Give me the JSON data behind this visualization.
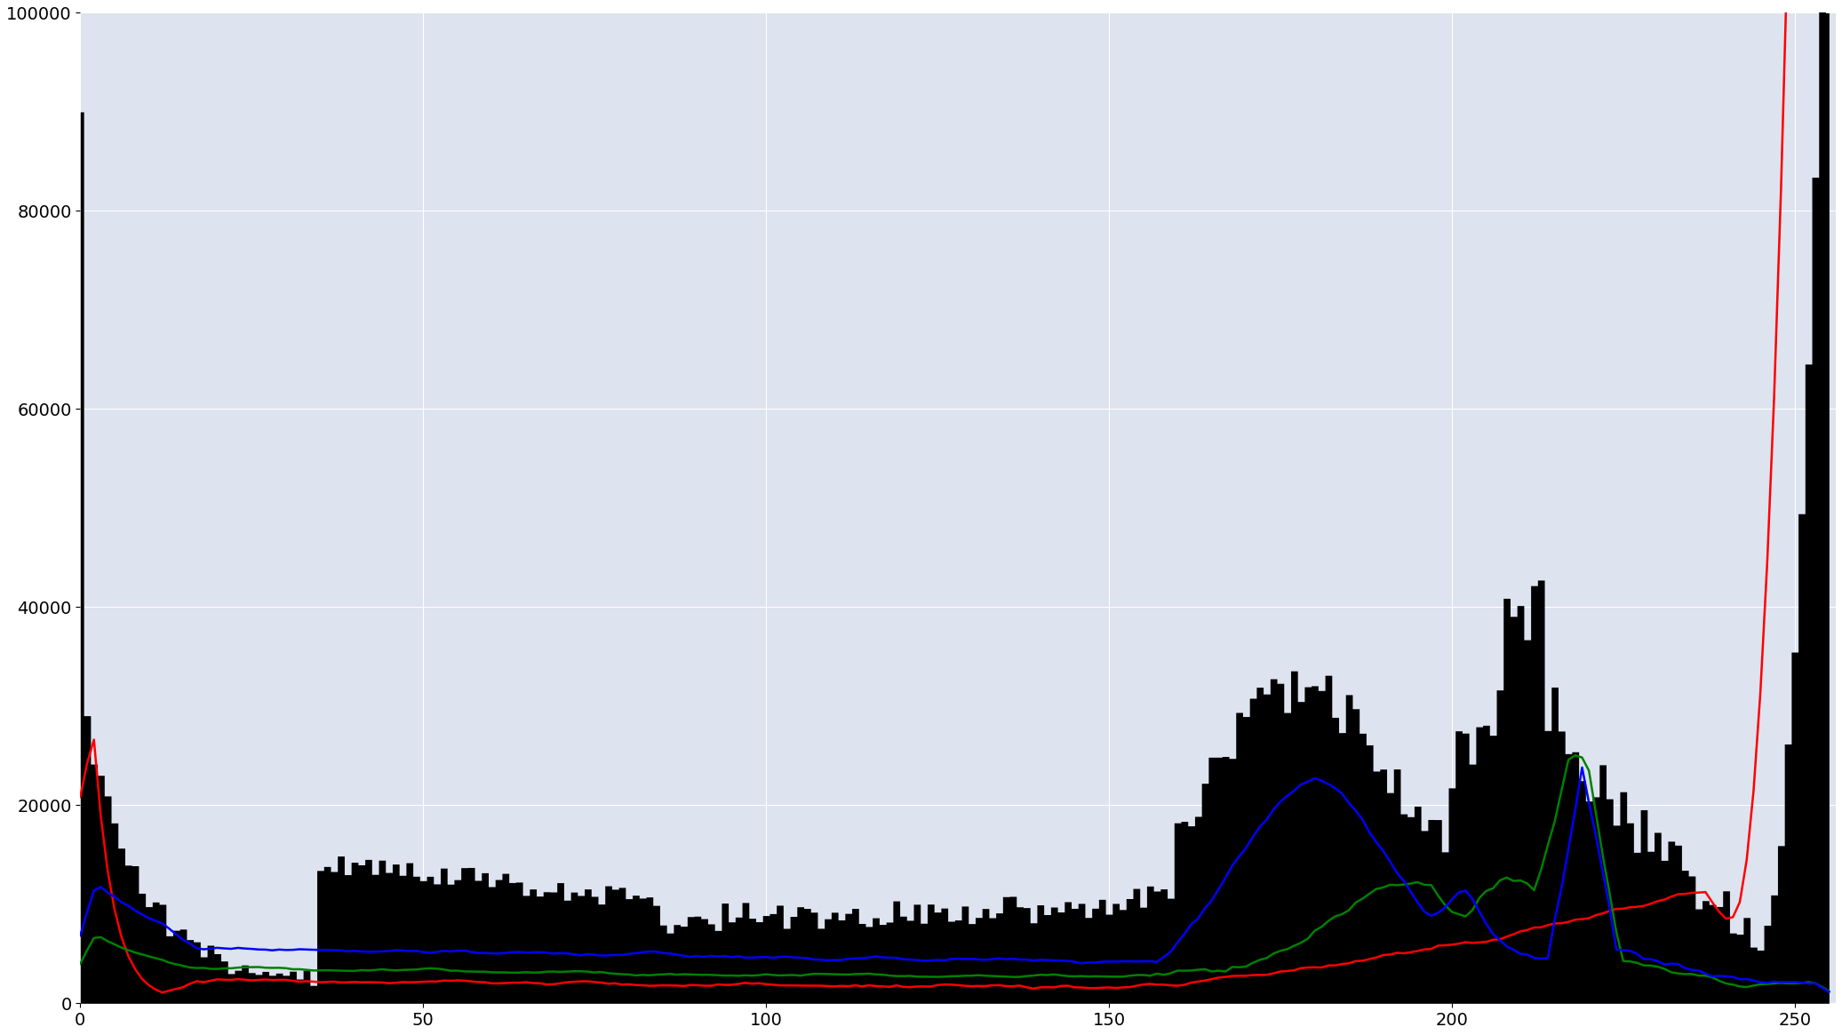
{
  "xlim": [
    0,
    256
  ],
  "ylim": [
    0,
    100000
  ],
  "xticks": [
    0,
    50,
    100,
    150,
    200,
    250
  ],
  "yticks": [
    0,
    20000,
    40000,
    60000,
    80000,
    100000
  ],
  "background_color": "#dde3ef",
  "figure_color": "#ffffff",
  "grid_color": "#ffffff",
  "figsize": [
    20.73,
    11.65
  ],
  "dpi": 100
}
